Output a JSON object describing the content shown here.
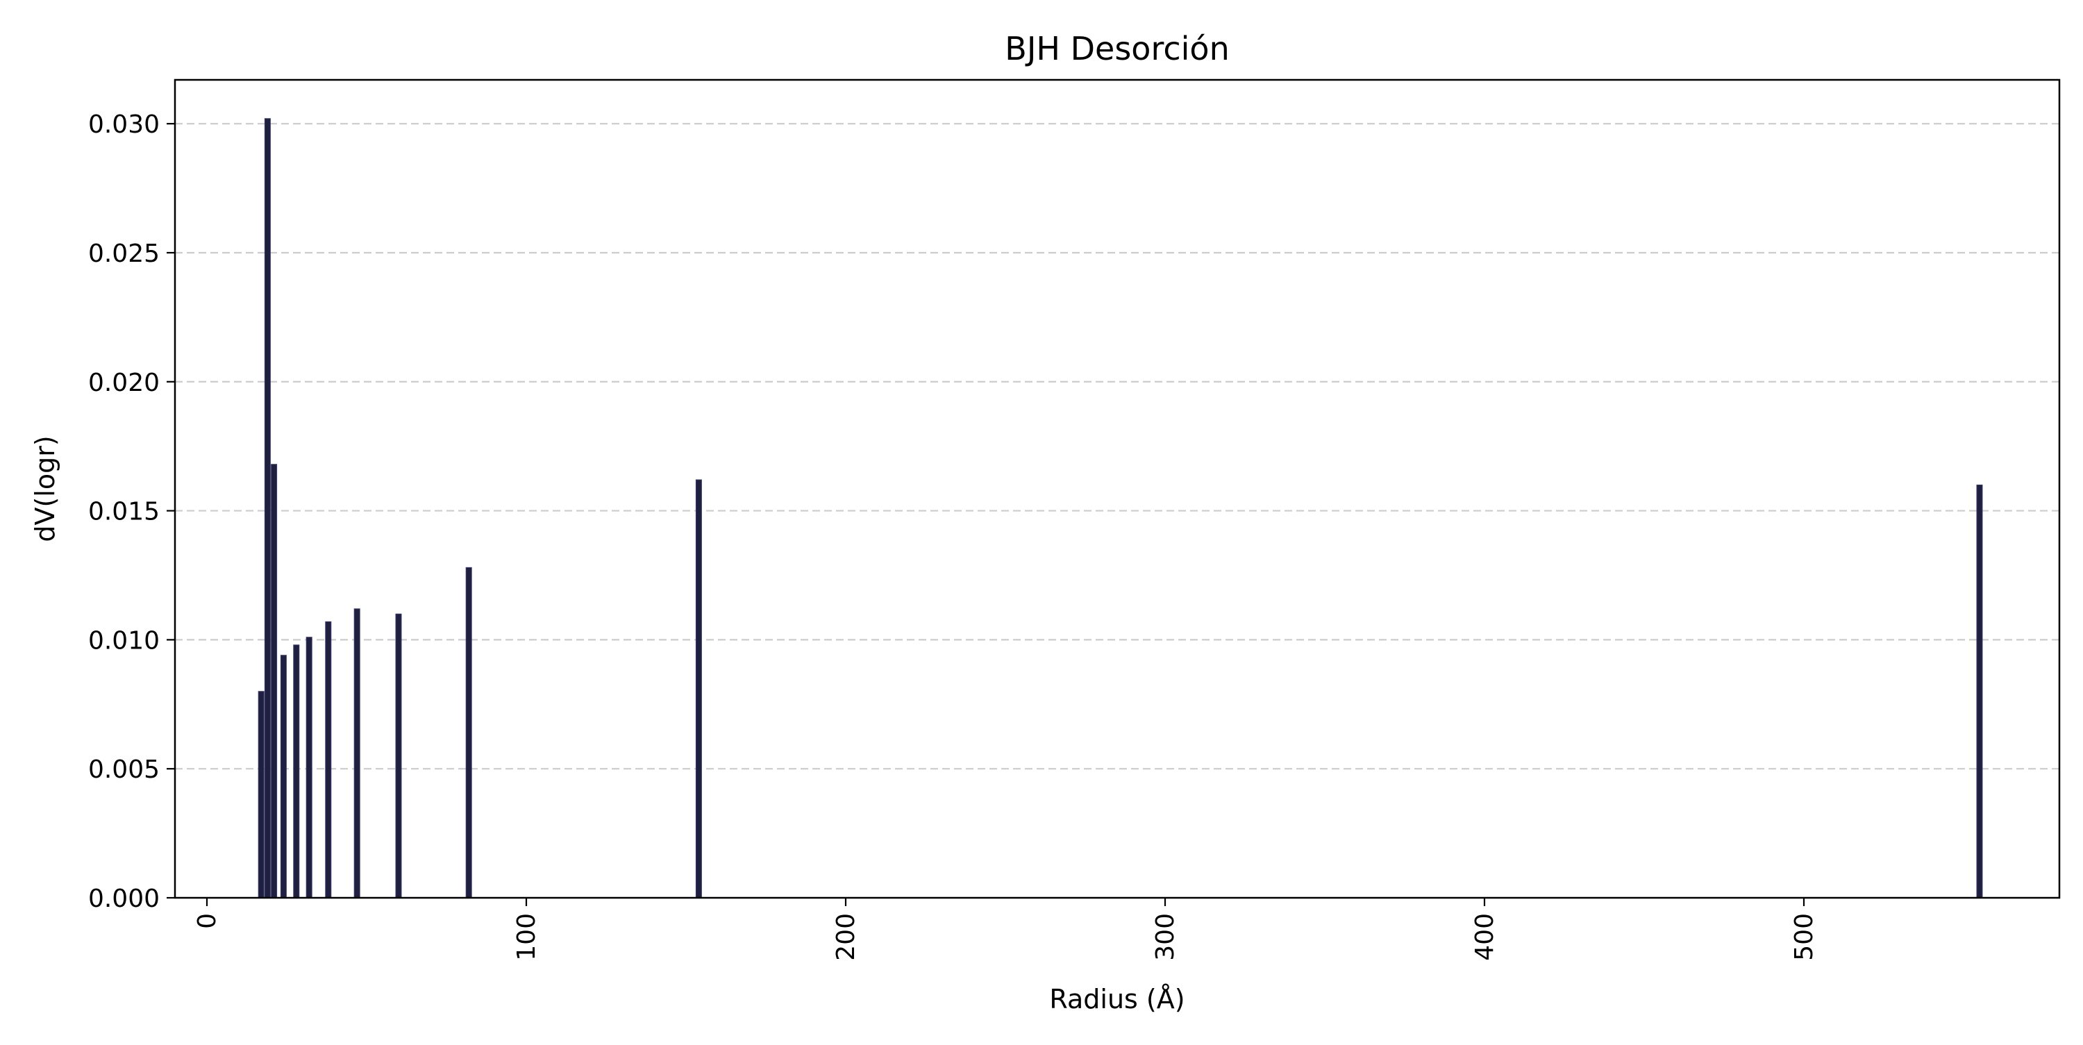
{
  "chart_data": {
    "type": "bar",
    "title": "BJH Desorción",
    "xlabel": "Radius (Å)",
    "ylabel": "dV(logr)",
    "xlim": [
      -10,
      580
    ],
    "ylim": [
      0,
      0.0317
    ],
    "xticks": [
      0,
      100,
      200,
      300,
      400,
      500
    ],
    "yticks": [
      0.0,
      0.005,
      0.01,
      0.015,
      0.02,
      0.025,
      0.03
    ],
    "xtick_labels": [
      "0",
      "100",
      "200",
      "300",
      "400",
      "500"
    ],
    "ytick_labels": [
      "0.000",
      "0.005",
      "0.010",
      "0.015",
      "0.020",
      "0.025",
      "0.030"
    ],
    "grid": {
      "axis": "y",
      "style": "dashed"
    },
    "bar_color": "#1f1f3f",
    "grid_color": "#cccccc",
    "series": [
      {
        "x": [
          17,
          19,
          21,
          24,
          28,
          32,
          38,
          47,
          60,
          82,
          154,
          555
        ],
        "values": [
          0.008,
          0.0302,
          0.0168,
          0.0094,
          0.0098,
          0.0101,
          0.0107,
          0.0112,
          0.011,
          0.0128,
          0.0162,
          0.016
        ]
      }
    ]
  }
}
